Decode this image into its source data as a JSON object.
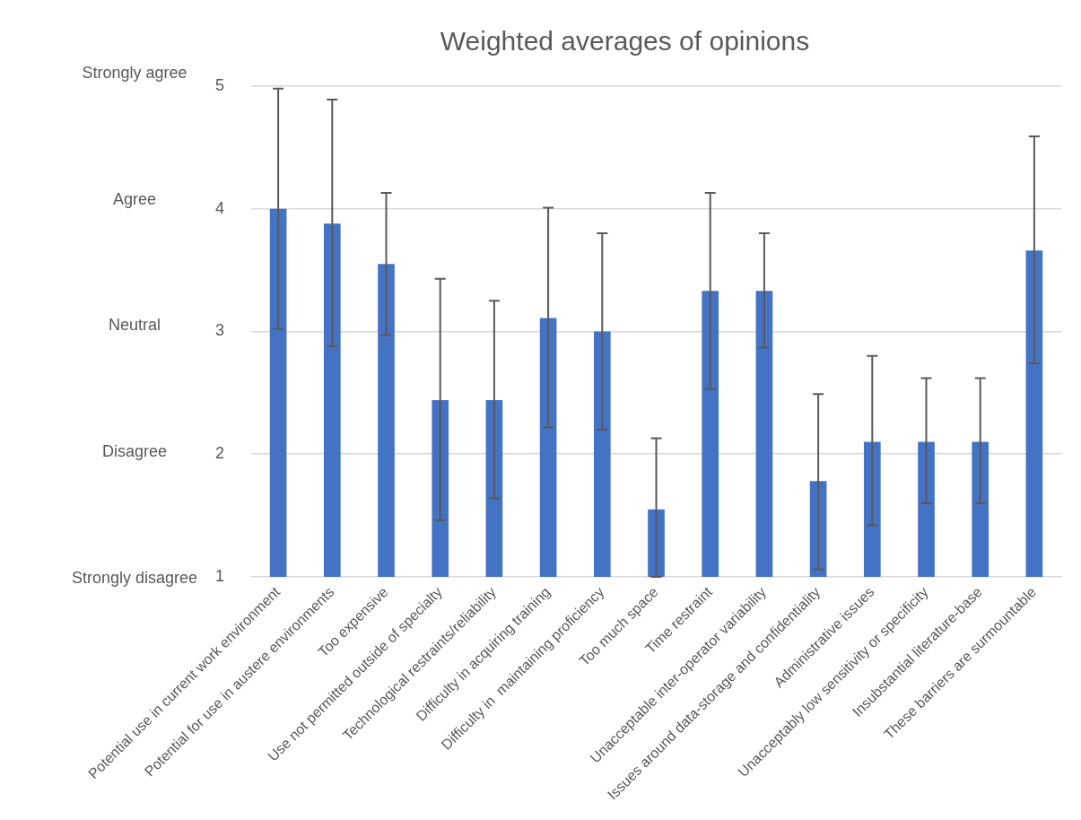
{
  "chart_data": {
    "type": "bar",
    "title": "Weighted averages of opinions",
    "categories": [
      "Potential use in current work environment",
      "Potential for use in austere environments",
      "Too expensive",
      "Use not permitted outside of specialty",
      "Technological restraints/reliability",
      "Difficulty in acquiring training",
      "Difficulty in  maintaining proficiency",
      "Too much space",
      "Time restraint",
      "Unacceptable inter-operator variability",
      "Issues around data-storage and confidentiality",
      "Administrative issues",
      "Unacceptably low sensitivity or specificity",
      "Insubstantial literature-base",
      "These barriers are surmountable"
    ],
    "values": [
      4.0,
      3.88,
      3.55,
      2.44,
      2.44,
      3.11,
      3.0,
      1.55,
      3.33,
      3.33,
      1.78,
      2.1,
      2.1,
      2.1,
      3.66
    ],
    "errors": [
      [
        3.02,
        4.98
      ],
      [
        2.88,
        4.89
      ],
      [
        2.97,
        4.13
      ],
      [
        1.46,
        3.43
      ],
      [
        1.64,
        3.25
      ],
      [
        2.22,
        4.01
      ],
      [
        2.2,
        3.8
      ],
      [
        1.0,
        2.13
      ],
      [
        2.53,
        4.13
      ],
      [
        2.87,
        3.8
      ],
      [
        1.06,
        2.49
      ],
      [
        1.42,
        2.8
      ],
      [
        1.6,
        2.62
      ],
      [
        1.6,
        2.62
      ],
      [
        2.74,
        4.59
      ]
    ],
    "color": "#4472c4",
    "ylim": [
      1,
      5
    ],
    "yticks": [
      1,
      2,
      3,
      4,
      5
    ],
    "annotations": [
      "Strongly agree",
      "Agree",
      "Neutral",
      "Disagree",
      "Strongly disagree"
    ],
    "grid": "y",
    "legend": false
  }
}
